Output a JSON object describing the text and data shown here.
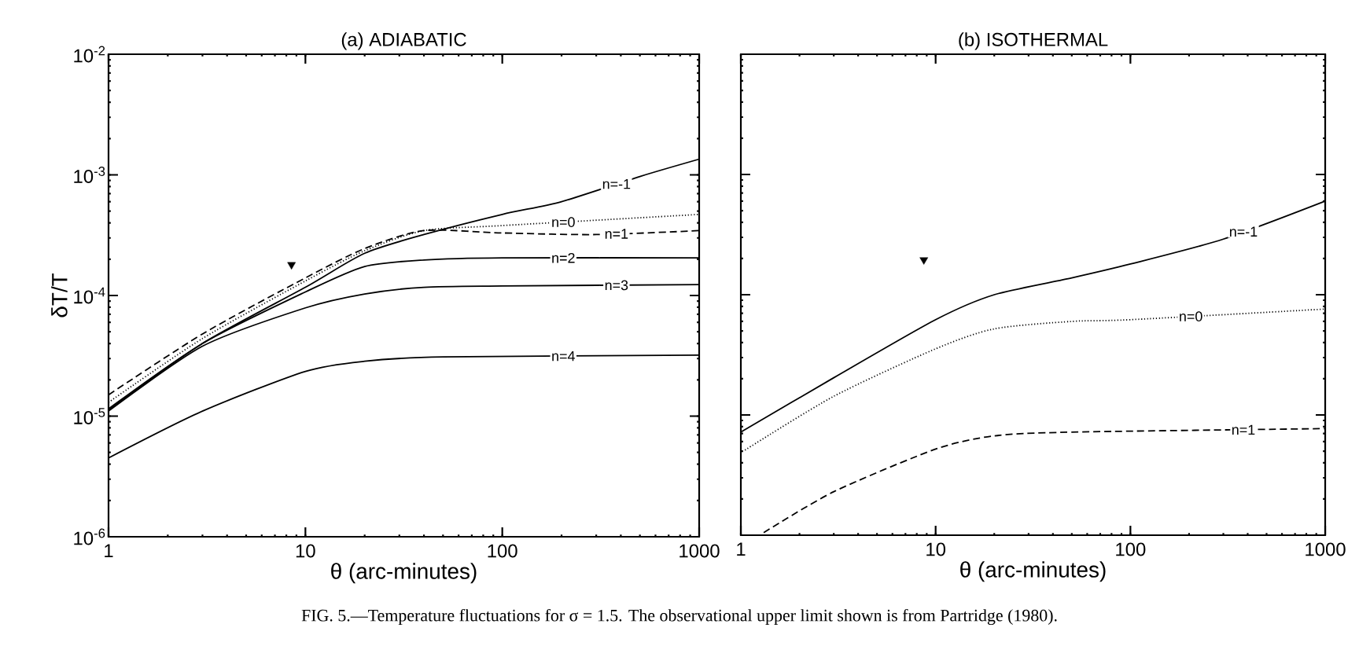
{
  "chart_data": [
    {
      "type": "line",
      "title": "(a)  ADIABATIC",
      "xlabel": "θ (arc-minutes)",
      "ylabel": "δT/T",
      "log": "xy",
      "xlim": [
        1,
        1000
      ],
      "ylim": [
        1e-06,
        0.01
      ],
      "xticks": [
        1,
        10,
        100,
        1000
      ],
      "yticks": [
        {
          "value": 1e-06,
          "label": "10$^{-6}$"
        },
        {
          "value": 1e-05,
          "label": "10$^{-5}$"
        },
        {
          "value": 0.0001,
          "label": "10$^{-4}$"
        },
        {
          "value": 0.001,
          "label": "10$^{-3}$"
        },
        {
          "value": 0.01,
          "label": "10$^{-2}$"
        }
      ],
      "annotations": [
        "FIG. 5.—Temperature fluctuations for σ = 1.5. The observational upper limit shown is from Partridge (1980)."
      ],
      "series": [
        {
          "name": "n=-1",
          "color": "#000000",
          "line_style": "solid",
          "x": [
            1,
            3,
            10,
            20,
            40,
            100,
            200,
            500,
            1000
          ],
          "values": [
            1.12e-05,
            4e-05,
            0.000117,
            0.000224,
            0.00032,
            0.00047,
            0.0006,
            0.00097,
            0.00135
          ]
        },
        {
          "name": "n=0",
          "color": "#000000",
          "line_style": "dotted",
          "x": [
            1,
            3,
            10,
            20,
            40,
            100,
            1000
          ],
          "values": [
            1.3e-05,
            4.4e-05,
            0.000132,
            0.000235,
            0.000345,
            0.00038,
            0.00047
          ]
        },
        {
          "name": "n=1",
          "color": "#000000",
          "line_style": "dashed",
          "x": [
            1,
            3,
            10,
            20,
            40,
            100,
            300,
            1000
          ],
          "values": [
            1.5e-05,
            4.8e-05,
            0.00014,
            0.000245,
            0.000345,
            0.00033,
            0.00032,
            0.000345
          ]
        },
        {
          "name": "n=2",
          "color": "#000000",
          "line_style": "solid",
          "x": [
            1,
            3,
            10,
            20,
            40,
            100,
            1000
          ],
          "values": [
            1.15e-05,
            4e-05,
            0.000107,
            0.000174,
            0.000197,
            0.000205,
            0.000205
          ]
        },
        {
          "name": "n=3",
          "color": "#000000",
          "line_style": "solid",
          "x": [
            1,
            3,
            10,
            20,
            40,
            100,
            1000
          ],
          "values": [
            1.1e-05,
            3.8e-05,
            7.9e-05,
            0.000103,
            0.000117,
            0.00012,
            0.000123
          ]
        },
        {
          "name": "n=4",
          "color": "#000000",
          "line_style": "solid",
          "x": [
            1,
            3,
            10,
            20,
            50,
            1000
          ],
          "values": [
            4.5e-06,
            1.1e-05,
            2.35e-05,
            2.85e-05,
            3.1e-05,
            3.2e-05
          ]
        },
        {
          "type": "scatter",
          "color": "#000000",
          "marker": "triangle",
          "x": [
            8.5
          ],
          "values": [
            0.00018
          ]
        }
      ]
    },
    {
      "type": "line",
      "title": "(b)  ISOTHERMAL",
      "xlabel": "θ (arc-minutes)",
      "log": "xy",
      "tick_labels": "x",
      "xlim": [
        1,
        1000
      ],
      "ylim": [
        1e-06,
        0.01
      ],
      "xticks": [
        1,
        10,
        100,
        1000
      ],
      "yticks": [
        {
          "value": 1e-06,
          "label": null
        },
        {
          "value": 1e-05,
          "label": null
        },
        {
          "value": 0.0001,
          "label": null
        },
        {
          "value": 0.001,
          "label": null
        },
        {
          "value": 0.01,
          "label": null
        }
      ],
      "series": [
        {
          "name": "n=-1",
          "color": "#000000",
          "line_style": "solid",
          "x": [
            1,
            3,
            10,
            20,
            50,
            100,
            300,
            1000
          ],
          "values": [
            7.2e-06,
            2.04e-05,
            6.2e-05,
            0.0001,
            0.000138,
            0.00018,
            0.00029,
            0.0006
          ]
        },
        {
          "name": "n=0",
          "color": "#000000",
          "line_style": "dotted",
          "x": [
            1.05,
            3,
            10,
            20,
            50,
            100,
            1000
          ],
          "values": [
            5.1e-06,
            1.43e-05,
            3.55e-05,
            5.2e-05,
            6e-05,
            6.2e-05,
            7.6e-05
          ]
        },
        {
          "name": "n=1",
          "color": "#000000",
          "line_style": "dashed",
          "x": [
            1.31,
            3,
            10,
            20,
            50,
            1000
          ],
          "values": [
            1.05e-06,
            2.3e-06,
            5.2e-06,
            6.7e-06,
            7.2e-06,
            7.7e-06
          ]
        },
        {
          "type": "scatter",
          "color": "#000000",
          "marker": "triangle",
          "x": [
            8.7
          ],
          "values": [
            0.000195
          ]
        }
      ]
    }
  ]
}
